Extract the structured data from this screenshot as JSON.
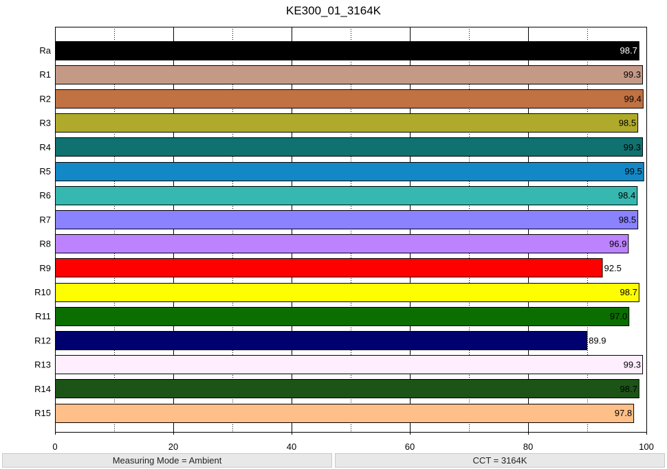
{
  "chart_data": {
    "type": "bar",
    "orientation": "horizontal",
    "title": "KE300_01_3164K",
    "xlim": [
      0,
      100
    ],
    "x_ticks": [
      0,
      20,
      40,
      60,
      80,
      100
    ],
    "grid": "vertical dotted at 10, 30, 50, 70, 90; solid at 20, 40, 60, 80",
    "categories": [
      "Ra",
      "R1",
      "R2",
      "R3",
      "R4",
      "R5",
      "R6",
      "R7",
      "R8",
      "R9",
      "R10",
      "R11",
      "R12",
      "R13",
      "R14",
      "R15"
    ],
    "values": [
      98.7,
      99.3,
      99.4,
      98.5,
      99.3,
      99.5,
      98.4,
      98.5,
      96.9,
      92.5,
      98.7,
      97.0,
      89.9,
      99.3,
      98.7,
      97.8
    ],
    "value_labels": [
      "98.7",
      "99.3",
      "99.4",
      "98.5",
      "99.3",
      "99.5",
      "98.4",
      "98.5",
      "96.9",
      "92.5",
      "98.7",
      "97.0",
      "89.9",
      "99.3",
      "98.7",
      "97.8"
    ],
    "colors": [
      "#000000",
      "#c49a87",
      "#c07242",
      "#b0aa2c",
      "#107270",
      "#1289c6",
      "#36b8b0",
      "#8a82fe",
      "#bd82fe",
      "#fe0000",
      "#fefe00",
      "#0a6e00",
      "#00006e",
      "#feeefe",
      "#1c5418",
      "#fec088"
    ],
    "label_colors": [
      "#ffffff",
      "#000000",
      "#000000",
      "#000000",
      "#000000",
      "#000000",
      "#000000",
      "#000000",
      "#000000",
      "#000000",
      "#000000",
      "#000000",
      "#000000",
      "#000000",
      "#000000",
      "#000000"
    ]
  },
  "status": {
    "left": "Measuring Mode = Ambient",
    "right": "CCT = 3164K"
  }
}
